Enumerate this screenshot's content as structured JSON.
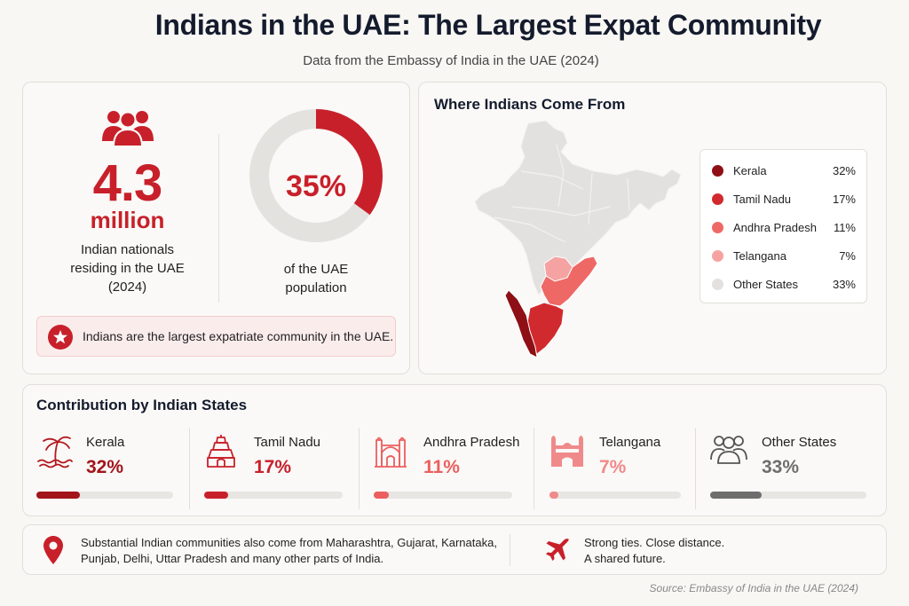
{
  "header": {
    "title": "Indians in the UAE: The Largest Expat Community",
    "subtitle": "Data from the Embassy of India in the UAE (2024)"
  },
  "population": {
    "number": "4.3",
    "unit": "million",
    "description": "Indian nationals residing in the UAE (2024)",
    "share_label": "35%",
    "share_value": 0.35,
    "share_description": "of the UAE population",
    "note": "Indians are the largest expatriate community in the UAE."
  },
  "map_card": {
    "title": "Where Indians Come From",
    "legend": [
      {
        "name": "Kerala",
        "value": "32%",
        "color": "#8e0f16"
      },
      {
        "name": "Tamil Nadu",
        "value": "17%",
        "color": "#d12a2e"
      },
      {
        "name": "Andhra Pradesh",
        "value": "11%",
        "color": "#ee6866"
      },
      {
        "name": "Telangana",
        "value": "7%",
        "color": "#f5a3a2"
      },
      {
        "name": "Other States",
        "value": "33%",
        "color": "#e3e1df"
      }
    ]
  },
  "contribution": {
    "title": "Contribution by Indian States",
    "states": [
      {
        "name": "Kerala",
        "value": "32%",
        "percent": 32,
        "color": "#a3141b",
        "icon": "palm-tree-icon"
      },
      {
        "name": "Tamil Nadu",
        "value": "17%",
        "percent": 17,
        "color": "#c8202a",
        "icon": "temple-icon"
      },
      {
        "name": "Andhra Pradesh",
        "value": "11%",
        "percent": 11,
        "color": "#ec5f5f",
        "icon": "gateway-icon"
      },
      {
        "name": "Telangana",
        "value": "7%",
        "percent": 7,
        "color": "#f08a8a",
        "icon": "charminar-icon"
      },
      {
        "name": "Other States",
        "value": "33%",
        "percent": 33,
        "color": "#6e6e6e",
        "icon": "people-icon"
      }
    ]
  },
  "footer": {
    "communities": "Substantial Indian communities also come from Maharashtra, Gujarat, Karnataka, Punjab, Delhi, Uttar Pradesh and many other parts of India.",
    "tagline_1": "Strong ties. Close distance.",
    "tagline_2": "A shared future.",
    "source": "Source: Embassy of India in the UAE (2024)"
  },
  "colors": {
    "accent": "#c8202a",
    "heading": "#141b2d"
  }
}
